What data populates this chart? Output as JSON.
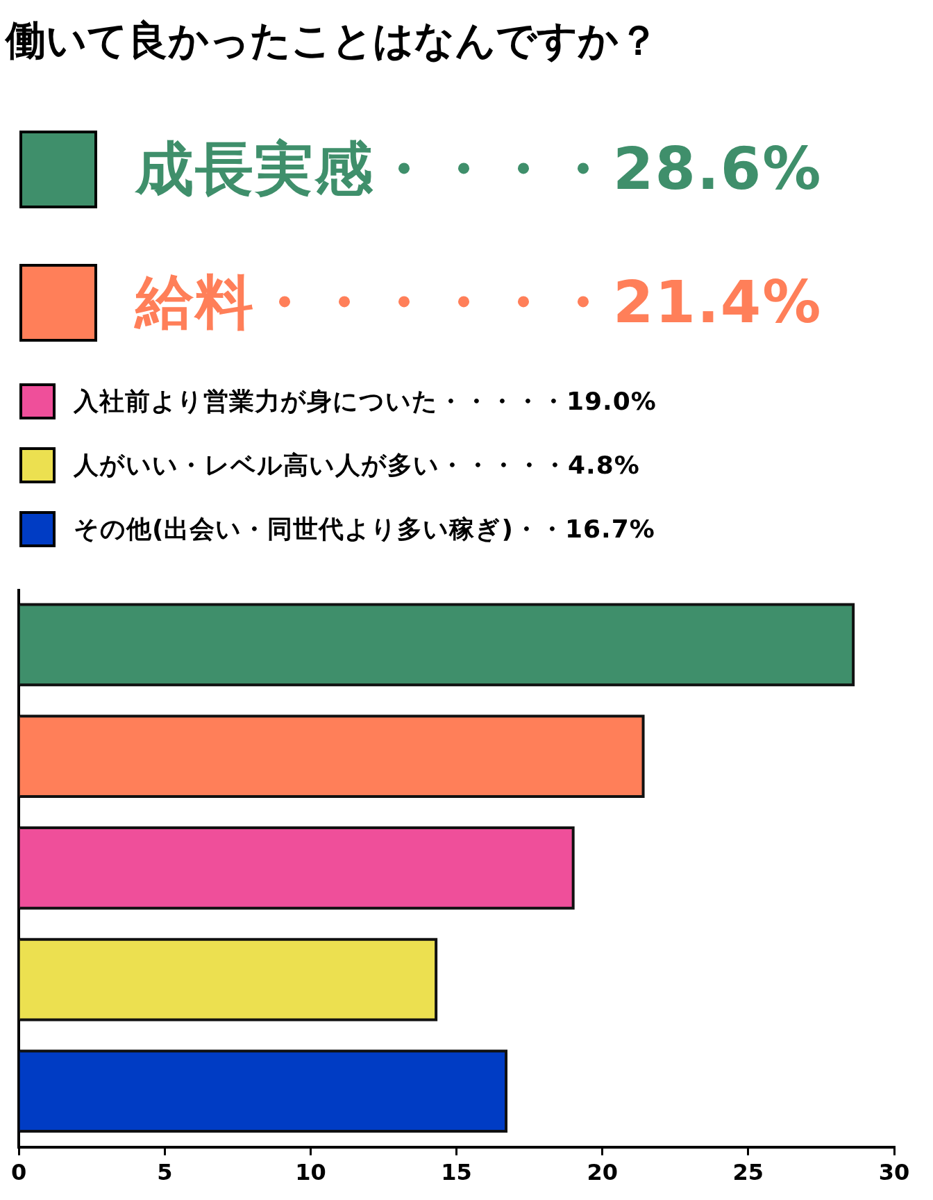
{
  "chart_data": {
    "type": "bar",
    "orientation": "horizontal",
    "title": "働いて良かったことはなんですか？",
    "categories": [
      null,
      null,
      null,
      null,
      null
    ],
    "series": [
      {
        "name": "成長実感・・・・28.6%",
        "color": "#3f8f6b",
        "values": [
          28.6,
          null,
          null,
          null,
          null
        ]
      },
      {
        "name": "給料・・・・・・21.4%",
        "color": "#ff7f59",
        "values": [
          null,
          21.4,
          null,
          null,
          null
        ]
      },
      {
        "name": "入社前より営業力が身についた・・・・・19.0%",
        "color": "#ef4f9a",
        "values": [
          null,
          null,
          19.0,
          null,
          null
        ]
      },
      {
        "name": "人がいい・レベル高い人が多い・・・・・4.8%",
        "color": "#ece050",
        "values": [
          null,
          null,
          null,
          14.3,
          null
        ]
      },
      {
        "name": "その他(出会い・同世代より多い稼ぎ)・・16.7%",
        "color": "#003cc4",
        "values": [
          null,
          null,
          null,
          null,
          16.7
        ]
      }
    ],
    "xlim": [
      0,
      30
    ],
    "xticks": [
      0,
      5,
      10,
      15,
      20,
      25,
      30
    ],
    "legend": "top",
    "grid": false
  }
}
